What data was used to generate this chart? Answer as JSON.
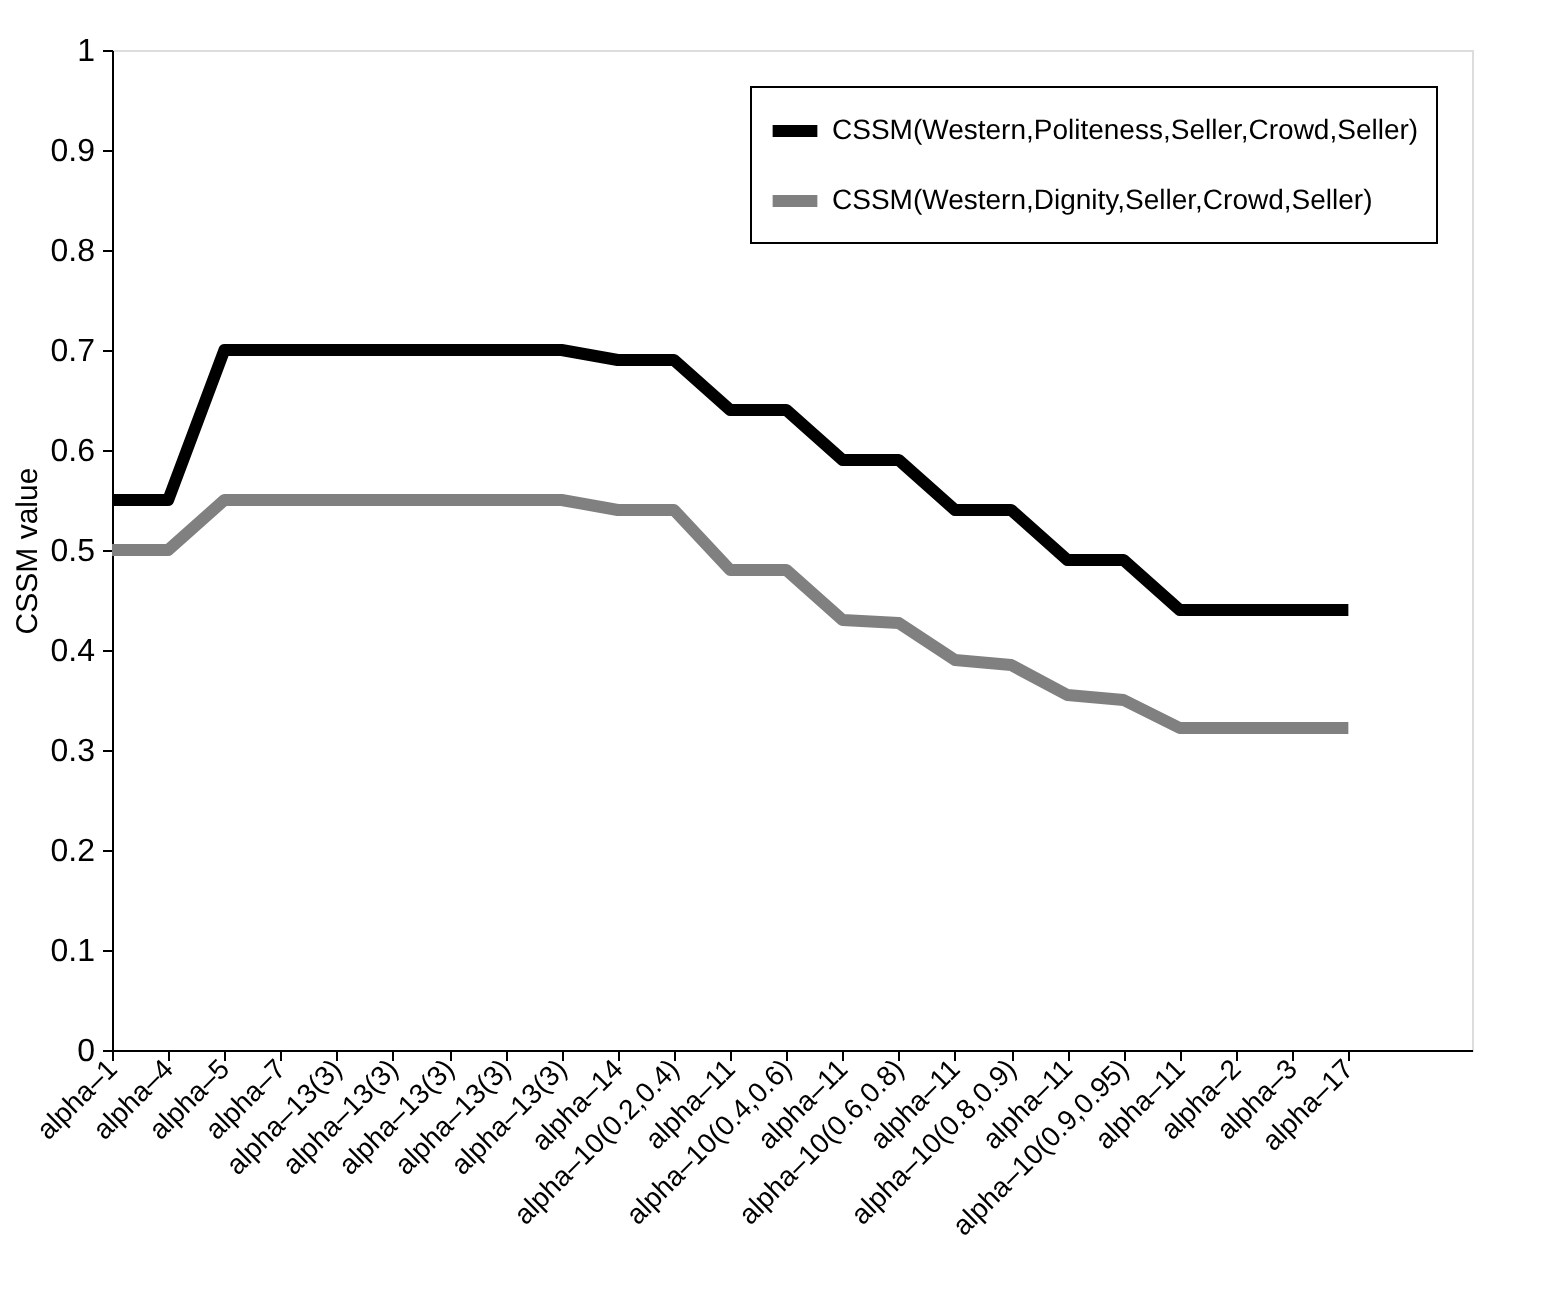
{
  "chart_data": {
    "type": "line",
    "ylabel": "CSSM value",
    "categories": [
      "alpha–1",
      "alpha–4",
      "alpha–5",
      "alpha–7",
      "alpha–13(3)",
      "alpha–13(3)",
      "alpha–13(3)",
      "alpha–13(3)",
      "alpha–13(3)",
      "alpha–14",
      "alpha–10(0.2,0.4)",
      "alpha–11",
      "alpha–10(0.4,0.6)",
      "alpha–11",
      "alpha–10(0.6,0.8)",
      "alpha–11",
      "alpha–10(0.8,0.9)",
      "alpha–11",
      "alpha–10(0.9,0.95)",
      "alpha–11",
      "alpha–2",
      "alpha–3",
      "alpha–17"
    ],
    "series": [
      {
        "name": "CSSM(Western,Politeness,Seller,Crowd,Seller)",
        "color": "#000000",
        "values": [
          0.55,
          0.55,
          0.7,
          0.7,
          0.7,
          0.7,
          0.7,
          0.7,
          0.7,
          0.69,
          0.69,
          0.64,
          0.64,
          0.59,
          0.59,
          0.54,
          0.54,
          0.49,
          0.49,
          0.44,
          0.44,
          0.44,
          0.44
        ]
      },
      {
        "name": "CSSM(Western,Dignity,Seller,Crowd,Seller)",
        "color": "#808080",
        "values": [
          0.5,
          0.5,
          0.55,
          0.55,
          0.55,
          0.55,
          0.55,
          0.55,
          0.55,
          0.54,
          0.54,
          0.48,
          0.48,
          0.43,
          0.427,
          0.39,
          0.385,
          0.355,
          0.35,
          0.322,
          0.322,
          0.322,
          0.322
        ]
      }
    ],
    "ylim": [
      0,
      1
    ],
    "yticks": [
      0,
      0.1,
      0.2,
      0.3,
      0.4,
      0.5,
      0.6,
      0.7,
      0.8,
      0.9,
      1
    ],
    "legend": "top right",
    "grid": false,
    "marker": "none",
    "line_style": "solid"
  }
}
